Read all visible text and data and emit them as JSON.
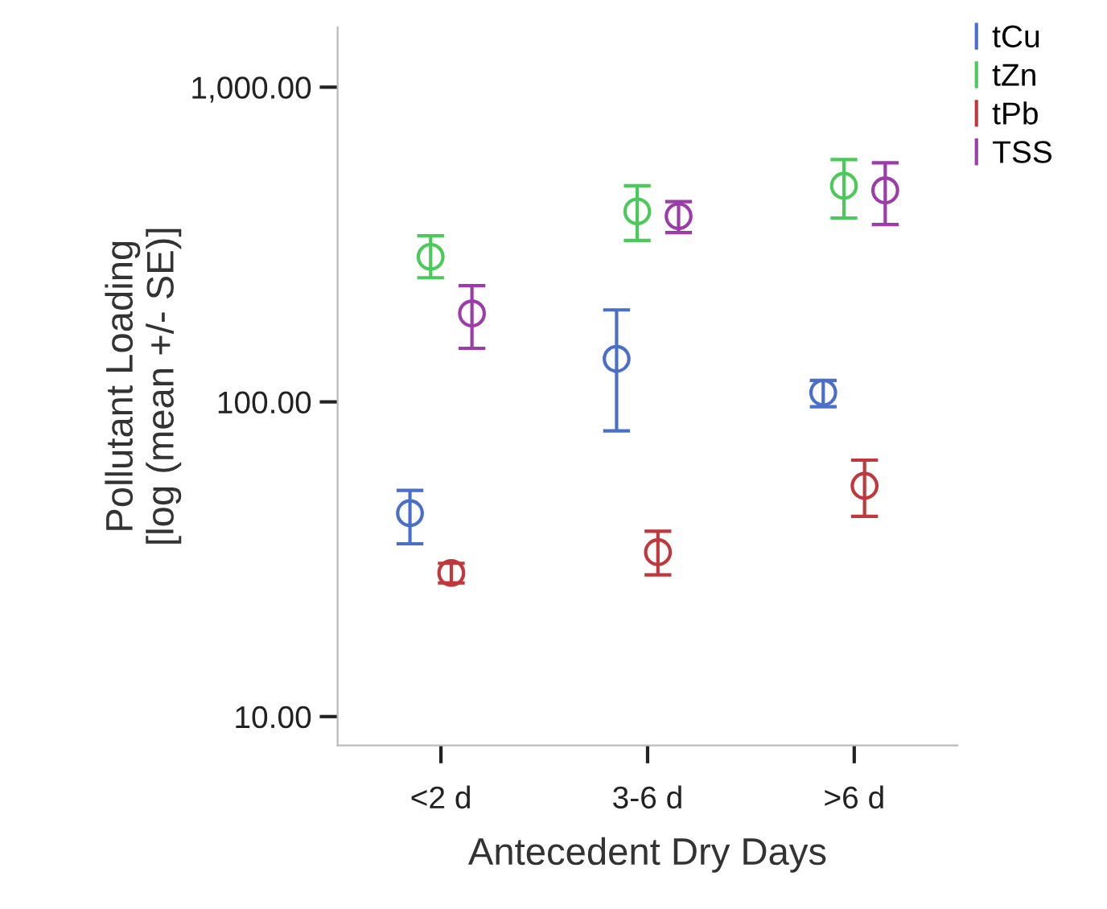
{
  "chart_data": {
    "type": "scatter",
    "xlabel": "Antecedent Dry Days",
    "ylabel": "Pollutant Loading\n[log (mean +/- SE)]",
    "categories": [
      "<2 d",
      "3-6 d",
      ">6 d"
    ],
    "series": [
      {
        "name": "tCu",
        "color": "#4a6fca",
        "values": [
          44.3,
          137,
          107
        ],
        "errors": [
          [
            35.4,
            52.3
          ],
          [
            80.9,
            196
          ],
          [
            96.5,
            117
          ]
        ]
      },
      {
        "name": "tZn",
        "color": "#4bc95a",
        "values": [
          289,
          403,
          486
        ],
        "errors": [
          [
            248,
            337
          ],
          [
            326,
            486
          ],
          [
            384,
            589
          ]
        ]
      },
      {
        "name": "tPb",
        "color": "#c0383c",
        "values": [
          28.6,
          33.3,
          54.1
        ],
        "errors": [
          [
            26.6,
            30.7
          ],
          [
            28.2,
            38.8
          ],
          [
            43.3,
            65.3
          ]
        ]
      },
      {
        "name": "TSS",
        "color": "#9b3ca8",
        "values": [
          191,
          389,
          470
        ],
        "errors": [
          [
            148,
            234
          ],
          [
            345,
            433
          ],
          [
            366,
            575
          ]
        ]
      }
    ],
    "log": "y",
    "ylim": [
      8.1,
      1550
    ],
    "yticks": [
      {
        "value": 10,
        "label": "10.00"
      },
      {
        "value": 100,
        "label": "100.00"
      },
      {
        "value": 1000,
        "label": "1,000.00"
      }
    ],
    "marker": "circle",
    "legend": "top right",
    "grid": false
  }
}
